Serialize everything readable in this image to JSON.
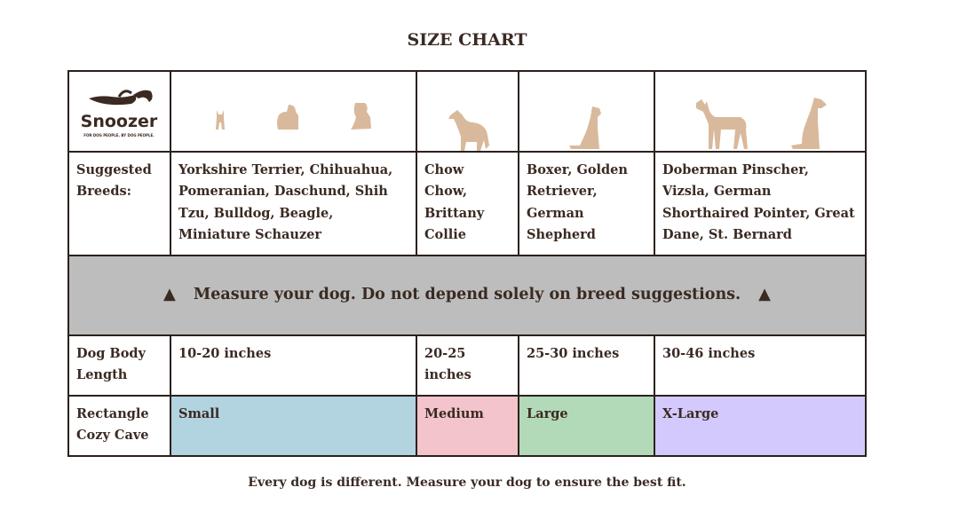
{
  "title": "SIZE CHART",
  "logo": {
    "name": "Snoozer",
    "tagline": "FOR DOG PEOPLE. BY DOG PEOPLE."
  },
  "colors": {
    "dog": "#d9b99b",
    "small": "#b2d3e0",
    "medium": "#f3c4cb",
    "large": "#b2dab8",
    "xlarge": "#d3c9fd",
    "warning_bg": "#bdbdbd"
  },
  "rows": {
    "breeds": {
      "label": "Suggested Breeds:",
      "values": [
        "Yorkshire Terrier, Chihuahua, Pomeranian, Daschund, Shih Tzu, Bulldog, Beagle, Miniature Schauzer",
        "Chow Chow, Brittany Collie",
        "Boxer, Golden Retriever, German Shepherd",
        "Doberman Pinscher, Vizsla, German Shorthaired Pointer, Great Dane, St. Bernard"
      ]
    },
    "warning": "Measure your dog. Do not depend solely on breed suggestions.",
    "length": {
      "label": "Dog Body Length",
      "values": [
        "10-20 inches",
        "20-25 inches",
        "25-30 inches",
        "30-46 inches"
      ]
    },
    "size": {
      "label": "Rectangle Cozy Cave",
      "values": [
        "Small",
        "Medium",
        "Large",
        "X-Large"
      ]
    }
  },
  "footer": "Every dog is different. Measure your dog to ensure the best fit."
}
